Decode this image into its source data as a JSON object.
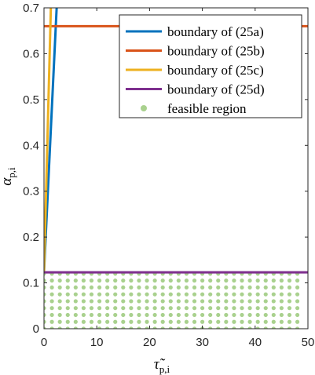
{
  "chart_data": {
    "type": "line",
    "xlabel": "τ̃p,i",
    "xlabel_parts": {
      "base": "τ̃",
      "sub": "p,i"
    },
    "ylabel": "αp,i",
    "ylabel_parts": {
      "base": "α",
      "sub": "p,i"
    },
    "xlim": [
      0,
      50
    ],
    "ylim": [
      0,
      0.7
    ],
    "x_ticks": [
      0,
      10,
      20,
      30,
      40,
      50
    ],
    "x_tick_labels": [
      "0",
      "10",
      "20",
      "30",
      "40",
      "50"
    ],
    "y_ticks": [
      0,
      0.1,
      0.2,
      0.3,
      0.4,
      0.5,
      0.6,
      0.7
    ],
    "y_tick_labels": [
      "0",
      "0.1",
      "0.2",
      "0.3",
      "0.4",
      "0.5",
      "0.6",
      "0.7"
    ],
    "grid": false,
    "legend_position": "top-right",
    "series": [
      {
        "name": "boundary of (25a)",
        "color": "#0072BD",
        "x": [
          0,
          2.4
        ],
        "y": [
          0.123,
          0.7
        ]
      },
      {
        "name": "boundary of (25b)",
        "color": "#D95319",
        "x": [
          0,
          50
        ],
        "y": [
          0.66,
          0.66
        ]
      },
      {
        "name": "boundary of (25c)",
        "color": "#EDB120",
        "x": [
          0,
          1.3
        ],
        "y": [
          0.123,
          0.7
        ]
      },
      {
        "name": "boundary of (25d)",
        "color": "#7E2F8E",
        "x": [
          0,
          50
        ],
        "y": [
          0.123,
          0.123
        ]
      }
    ],
    "feasible_region": {
      "name": "feasible region",
      "color": "#A9D18E",
      "x_start": 0,
      "x_end": 49,
      "x_step": 1.5,
      "y_start": 0,
      "y_end": 0.12,
      "y_step": 0.015
    }
  }
}
